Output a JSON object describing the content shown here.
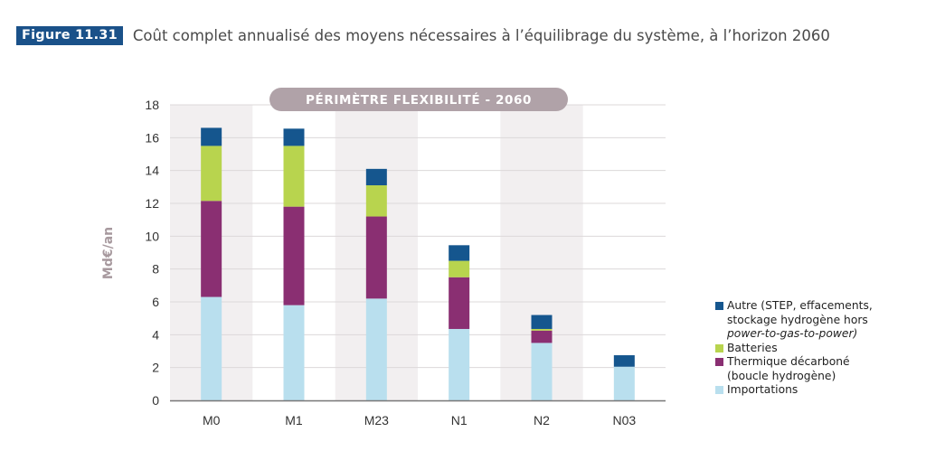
{
  "header": {
    "figure_label": "Figure 11.31",
    "title": "Coût complet annualisé des moyens nécessaires à l’équilibrage du système, à l’horizon 2060"
  },
  "chart_data": {
    "type": "bar",
    "stacked": true,
    "banner": "PÉRIMÈTRE FLEXIBILITÉ - 2060",
    "title": "Coût complet annualisé des moyens nécessaires à l’équilibrage du système, à l’horizon 2060",
    "xlabel": "",
    "ylabel": "Md€/an",
    "ylim": [
      0,
      18
    ],
    "yticks": [
      0,
      2,
      4,
      6,
      8,
      10,
      12,
      14,
      16,
      18
    ],
    "grid": true,
    "legend_position": "right-bottom",
    "categories": [
      "M0",
      "M1",
      "M23",
      "N1",
      "N2",
      "N03"
    ],
    "shaded_categories": [
      "M0",
      "M23",
      "N2"
    ],
    "series": [
      {
        "name": "Importations",
        "color": "#b9dfee",
        "values": [
          6.3,
          5.8,
          6.2,
          4.35,
          3.5,
          2.05
        ]
      },
      {
        "name": "Thermique décarboné (boucle hydrogène)",
        "color": "#8a2f72",
        "values": [
          5.85,
          6.0,
          5.0,
          3.15,
          0.75,
          0
        ]
      },
      {
        "name": "Batteries",
        "color": "#b8d44e",
        "values": [
          3.35,
          3.7,
          1.9,
          1.0,
          0.1,
          0
        ]
      },
      {
        "name": "Autre (STEP, effacements, stockage hydrogène hors power-to-gas-to-power)",
        "color": "#15568e",
        "values": [
          1.1,
          1.05,
          1.0,
          0.95,
          0.85,
          0.7
        ]
      }
    ]
  },
  "legend": {
    "items": [
      {
        "line1": "Autre (STEP, effacements,",
        "line2": "stockage hydrogène hors",
        "line3_italic": "power-to-gas-to-power)",
        "color": "#15568e"
      },
      {
        "line1": "Batteries",
        "color": "#b8d44e"
      },
      {
        "line1": "Thermique décarboné",
        "line2": "(boucle hydrogène)",
        "color": "#8a2f72"
      },
      {
        "line1": "Importations",
        "color": "#b9dfee"
      }
    ]
  },
  "colors": {
    "badge": "#1a5189",
    "banner": "#b0a2a8",
    "band": "#f2eff0",
    "grid": "#dcd8da",
    "axis": "#777777"
  }
}
